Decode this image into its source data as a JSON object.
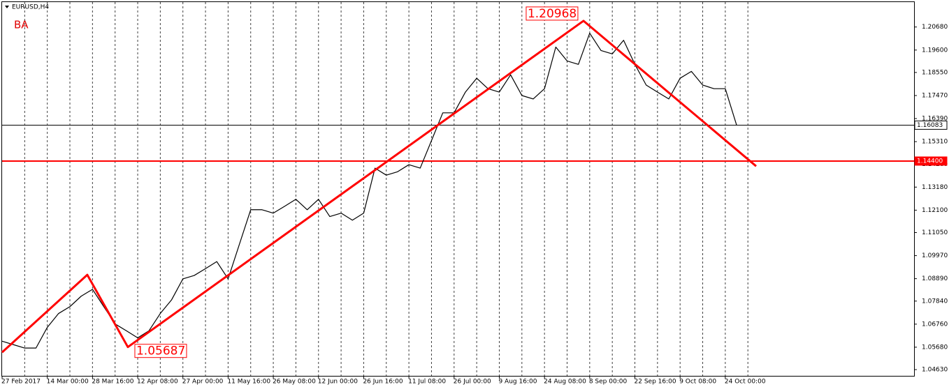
{
  "chart_data": {
    "type": "line",
    "title": "EURUSD,H4",
    "annotation": "BA",
    "categories": [
      "27 Feb 2017",
      null,
      null,
      null,
      "14 Mar 00:00",
      null,
      null,
      null,
      "28 Mar 16:00",
      null,
      null,
      null,
      "12 Apr 08:00",
      null,
      null,
      null,
      "27 Apr 00:00",
      null,
      null,
      null,
      "11 May 16:00",
      null,
      null,
      null,
      "26 May 08:00",
      null,
      null,
      null,
      "12 Jun 00:00",
      null,
      null,
      null,
      "26 Jun 16:00",
      null,
      null,
      null,
      "11 Jul 08:00",
      null,
      null,
      null,
      "26 Jul 00:00",
      null,
      null,
      null,
      "9 Aug 16:00",
      null,
      null,
      null,
      "24 Aug 08:00",
      null,
      null,
      null,
      "8 Sep 00:00",
      null,
      null,
      null,
      "22 Sep 16:00",
      null,
      null,
      null,
      "9 Oct 08:00",
      null,
      null,
      null,
      "24 Oct 00:00",
      null,
      null,
      null
    ],
    "values": [
      1.0596,
      1.058,
      1.0564,
      1.0564,
      1.0661,
      1.0726,
      1.0758,
      1.0807,
      1.0839,
      1.0758,
      1.0677,
      1.0645,
      1.0612,
      1.0645,
      1.0726,
      1.079,
      1.0888,
      1.0904,
      1.0936,
      1.0969,
      1.0888,
      1.105,
      1.1212,
      1.1212,
      1.1196,
      1.1228,
      1.1261,
      1.1212,
      1.1261,
      1.118,
      1.1196,
      1.1163,
      1.1196,
      1.1407,
      1.1374,
      1.139,
      1.1423,
      1.1407,
      1.1536,
      1.1666,
      1.1666,
      1.1763,
      1.1828,
      1.1779,
      1.1763,
      1.1844,
      1.1747,
      1.1731,
      1.1779,
      1.1974,
      1.1909,
      1.1893,
      1.2039,
      1.1958,
      1.1942,
      1.2006,
      1.1893,
      1.1796,
      1.1763,
      1.1731,
      1.1828,
      1.186,
      1.1796,
      1.1779,
      1.1779,
      1.16083,
      null,
      null
    ],
    "color": "#000000",
    "trendline": {
      "color": "#ff0000",
      "x": [
        0,
        7.54,
        11.13,
        51.45,
        66.73
      ],
      "values": [
        1.0544,
        1.0907,
        1.05687,
        1.20968,
        1.1416
      ]
    },
    "hlines": [
      {
        "value": 1.16083,
        "label": "1.16083",
        "color": "#000000"
      },
      {
        "value": 1.144,
        "label": "1.14400",
        "color": "#ff0000"
      }
    ],
    "ylim": [
      1.04338,
      1.21847
    ],
    "yticks": [
      {
        "value": 1.0463,
        "label": "1.04630"
      },
      {
        "value": 1.0568,
        "label": "1.05680"
      },
      {
        "value": 1.0676,
        "label": "1.06760"
      },
      {
        "value": 1.0784,
        "label": "1.07840"
      },
      {
        "value": 1.0889,
        "label": "1.08890"
      },
      {
        "value": 1.0997,
        "label": "1.09970"
      },
      {
        "value": 1.1105,
        "label": "1.11050"
      },
      {
        "value": 1.121,
        "label": "1.12100"
      },
      {
        "value": 1.1318,
        "label": "1.13180"
      },
      {
        "value": 1.1426,
        "label": "1.14260"
      },
      {
        "value": 1.1531,
        "label": "1.15310"
      },
      {
        "value": 1.1639,
        "label": "1.16390"
      },
      {
        "value": 1.1747,
        "label": "1.17470"
      },
      {
        "value": 1.1855,
        "label": "1.18550"
      },
      {
        "value": 1.196,
        "label": "1.19600"
      },
      {
        "value": 1.2068,
        "label": "1.20680"
      }
    ],
    "grid": true
  }
}
